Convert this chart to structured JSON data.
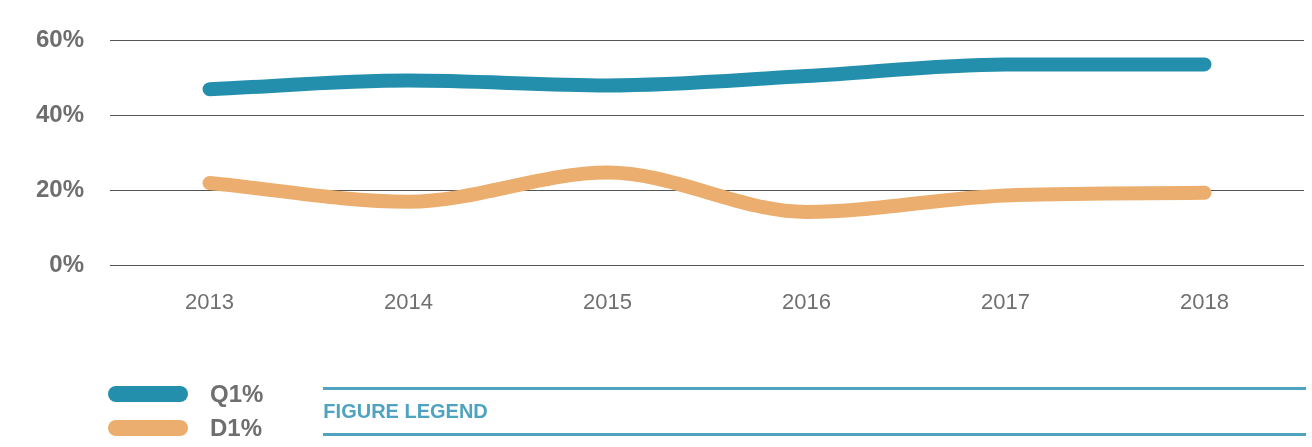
{
  "chart_data": {
    "type": "line",
    "categories": [
      "2013",
      "2014",
      "2015",
      "2016",
      "2017",
      "2018"
    ],
    "series": [
      {
        "name": "Q1%",
        "color": "#238fad",
        "values": [
          47,
          49.3,
          48,
          50.5,
          53.6,
          53.6
        ]
      },
      {
        "name": "D1%",
        "color": "#ebae6e",
        "values": [
          22,
          17,
          24.8,
          14.3,
          18.7,
          19.4
        ]
      }
    ],
    "ylim": [
      0,
      60
    ],
    "yticks": [
      {
        "value": 0,
        "label": "0%"
      },
      {
        "value": 20,
        "label": "20%"
      },
      {
        "value": 40,
        "label": "40%"
      },
      {
        "value": 60,
        "label": "60%"
      }
    ],
    "grid": "y",
    "legend": "bottom left",
    "marker": "none",
    "line_style": "solid",
    "annotations": [
      "FIGURE LEGEND"
    ]
  }
}
